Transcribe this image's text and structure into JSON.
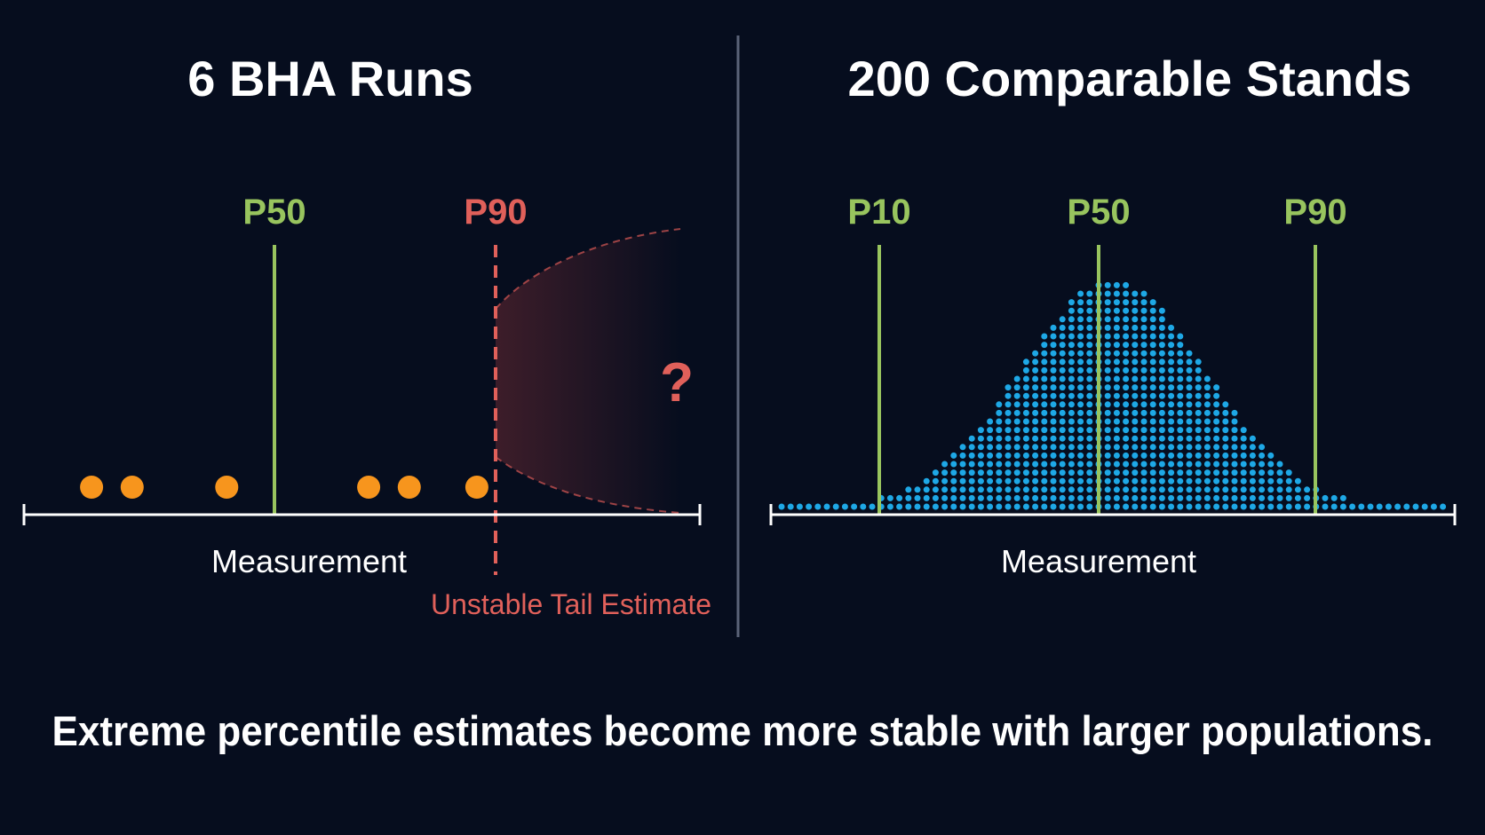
{
  "colors": {
    "background": "#060d1e",
    "divider": "#5b6378",
    "axis": "#ffffff",
    "percentile_line": "#98c45e",
    "p90_uncertain": "#e0605a",
    "sample_dot": "#f7951d",
    "population_dot": "#1ea8e6",
    "text": "#ffffff"
  },
  "left_panel": {
    "title": "6 BHA Runs",
    "axis_label": "Measurement",
    "p50_label": "P50",
    "p90_label": "P90",
    "question_mark": "?",
    "tail_note": "Unstable Tail Estimate"
  },
  "right_panel": {
    "title": "200 Comparable Stands",
    "axis_label": "Measurement",
    "p10_label": "P10",
    "p50_label": "P50",
    "p90_label": "P90"
  },
  "caption": "Extreme percentile estimates become more stable with larger populations.",
  "chart_data": [
    {
      "type": "scatter",
      "title": "6 BHA Runs",
      "xlabel": "Measurement",
      "n": 6,
      "x_values": [
        0.1,
        0.16,
        0.3,
        0.51,
        0.57,
        0.67
      ],
      "percentiles": [
        {
          "name": "P50",
          "x": 0.37,
          "style": "solid"
        },
        {
          "name": "P90",
          "x": 0.68,
          "style": "dashed"
        }
      ],
      "tail_region": "uncertain",
      "annotation": "Unstable Tail Estimate"
    },
    {
      "type": "scatter",
      "title": "200 Comparable Stands",
      "xlabel": "Measurement",
      "distribution": "normal",
      "mean": 0.5,
      "sd": 0.135,
      "percentiles": [
        {
          "name": "P10",
          "x": 0.16
        },
        {
          "name": "P50",
          "x": 0.47
        },
        {
          "name": "P90",
          "x": 0.79
        }
      ]
    }
  ]
}
